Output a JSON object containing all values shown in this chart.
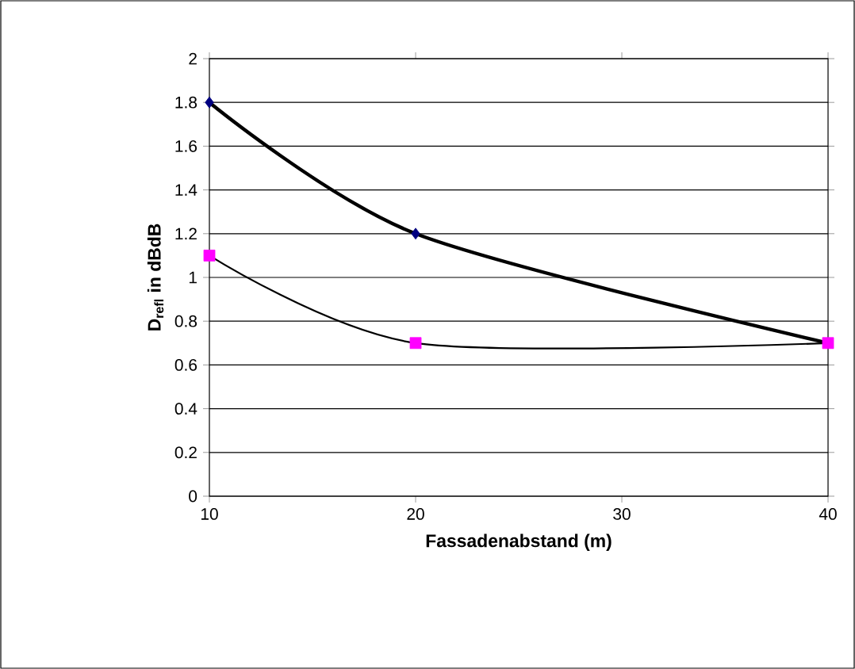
{
  "chart_data": {
    "type": "line",
    "xlabel": "Fassadenabstand (m)",
    "ylabel": "D$_{refl}$ in dBdB",
    "x": [
      10,
      20,
      40
    ],
    "series": [
      {
        "color": "#000080",
        "marker": "diamond",
        "values": [
          1.8,
          1.2,
          0.7
        ]
      },
      {
        "color": "#ff00ff",
        "marker": "square",
        "values": [
          1.1,
          0.7,
          0.7
        ]
      }
    ],
    "xlim": [
      10,
      40
    ],
    "xticks": [
      10,
      20,
      30,
      40
    ],
    "ylim": [
      0,
      2
    ],
    "yticks": [
      0,
      0.2,
      0.4,
      0.6,
      0.8,
      1,
      1.2,
      1.4,
      1.6,
      1.8,
      2
    ],
    "grid": "y"
  }
}
